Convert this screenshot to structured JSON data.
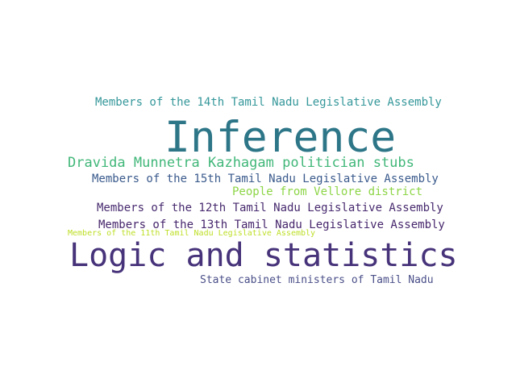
{
  "words": [
    {
      "text": "Members of the 14th Tamil Nadu Legislative Assembly",
      "color": "#35979a"
    },
    {
      "text": "Inference",
      "color": "#2d7688"
    },
    {
      "text": "Dravida Munnetra Kazhagam politician stubs",
      "color": "#41b779"
    },
    {
      "text": "Members of the 15th Tamil Nadu Legislative Assembly",
      "color": "#3a5a8c"
    },
    {
      "text": "People from Vellore district",
      "color": "#8dd547"
    },
    {
      "text": "Members of the 12th Tamil Nadu Legislative Assembly",
      "color": "#472a6e"
    },
    {
      "text": "Members of the 13th Tamil Nadu Legislative Assembly",
      "color": "#46266c"
    },
    {
      "text": "Members of the 11th Tamil Nadu Legislative Assembly",
      "color": "#bddf26"
    },
    {
      "text": "Logic and statistics",
      "color": "#47337a"
    },
    {
      "text": "State cabinet ministers of Tamil Nadu",
      "color": "#4a4f88"
    }
  ]
}
